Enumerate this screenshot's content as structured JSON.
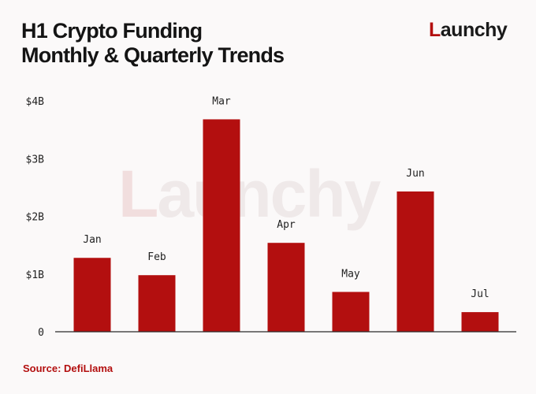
{
  "header": {
    "title_line1": "H1 Crypto Funding",
    "title_line2": "Monthly & Quarterly Trends",
    "logo_first": "L",
    "logo_rest": "aunchy"
  },
  "watermark": {
    "first": "L",
    "rest": "aunchy"
  },
  "source": "Source: DefiLlama",
  "colors": {
    "bar": "#b30f0f",
    "accent": "#b30f0f",
    "text": "#141414"
  },
  "chart_data": {
    "type": "bar",
    "categories": [
      "Jan",
      "Feb",
      "Mar",
      "Apr",
      "May",
      "Jun",
      "Jul"
    ],
    "values": [
      1.28,
      0.98,
      3.68,
      1.54,
      0.69,
      2.43,
      0.34
    ],
    "yticks": [
      {
        "value": 0,
        "label": "0"
      },
      {
        "value": 1,
        "label": "$1B"
      },
      {
        "value": 2,
        "label": "$2B"
      },
      {
        "value": 3,
        "label": "$3B"
      },
      {
        "value": 4,
        "label": "$4B"
      }
    ],
    "ylim": [
      0,
      4
    ],
    "title": "H1 Crypto Funding Monthly & Quarterly Trends",
    "xlabel": "",
    "ylabel": "",
    "grid": false,
    "legend": "none"
  }
}
